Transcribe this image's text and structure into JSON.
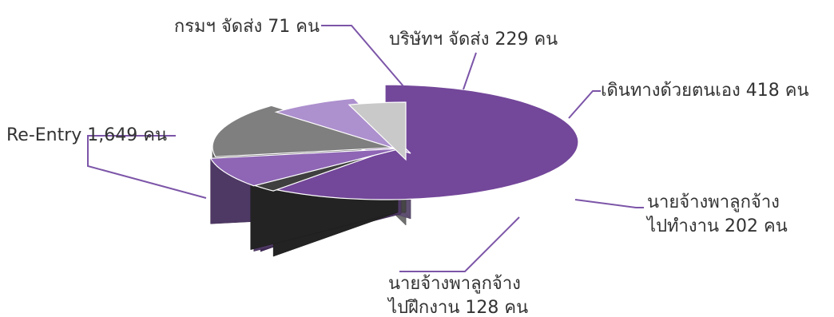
{
  "chart_data": {
    "type": "pie",
    "style": "3d-exploded",
    "title": "",
    "unit": "คน",
    "slices": [
      {
        "key": "reentry",
        "value": 1649,
        "color": "#73479A",
        "label_lines": [
          "Re-Entry 1,649 คน"
        ]
      },
      {
        "key": "dept",
        "value": 71,
        "color": "#3F3F3F",
        "label_lines": [
          "กรมฯ จัดส่ง 71 คน"
        ]
      },
      {
        "key": "company",
        "value": 229,
        "color": "#8E66B5",
        "label_lines": [
          "บริษัทฯ จัดส่ง 229 คน"
        ]
      },
      {
        "key": "self",
        "value": 418,
        "color": "#7F7F7F",
        "label_lines": [
          "เดินทางด้วยตนเอง 418 คน"
        ]
      },
      {
        "key": "emp_work",
        "value": 202,
        "color": "#AD90CE",
        "label_lines": [
          "นายจ้างพาลูกจ้าง",
          "ไปทำงาน 202 คน"
        ]
      },
      {
        "key": "emp_train",
        "value": 128,
        "color": "#C9C9C9",
        "label_lines": [
          "นายจ้างพาลูกจ้าง",
          "ไปฝึกงาน 128 คน"
        ]
      }
    ]
  }
}
